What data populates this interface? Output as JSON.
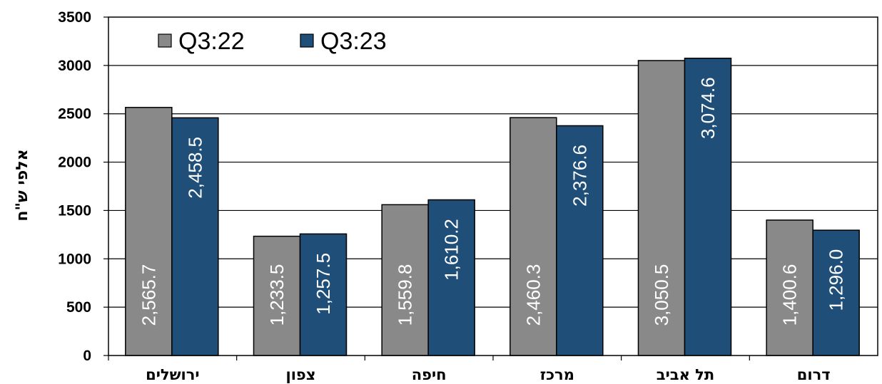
{
  "chart_data": {
    "type": "bar",
    "categories": [
      "ירושלים",
      "צפון",
      "חיפה",
      "מרכז",
      "תל אביב",
      "דרום"
    ],
    "series": [
      {
        "name": "Q3:22",
        "color": "#898989",
        "values": [
          2565.7,
          1233.5,
          1559.8,
          2460.3,
          3050.5,
          1400.6
        ],
        "labels": [
          "2,565.7",
          "1,233.5",
          "1,559.8",
          "2,460.3",
          "3,050.5",
          "1,400.6"
        ]
      },
      {
        "name": "Q3:23",
        "color": "#1f4e79",
        "values": [
          2458.5,
          1257.5,
          1610.2,
          2376.6,
          3074.6,
          1296.0
        ],
        "labels": [
          "2,458.5",
          "1,257.5",
          "1,610.2",
          "2,376.6",
          "3,074.6",
          "1,296.0"
        ]
      }
    ],
    "ylabel": "אלפי ש\"ח",
    "xlabel": "",
    "ylim": [
      0,
      3500
    ],
    "yticks": [
      "0",
      "500",
      "1000",
      "1500",
      "2000",
      "2500",
      "3000",
      "3500"
    ],
    "grid": true,
    "legend_position": "top-left"
  }
}
